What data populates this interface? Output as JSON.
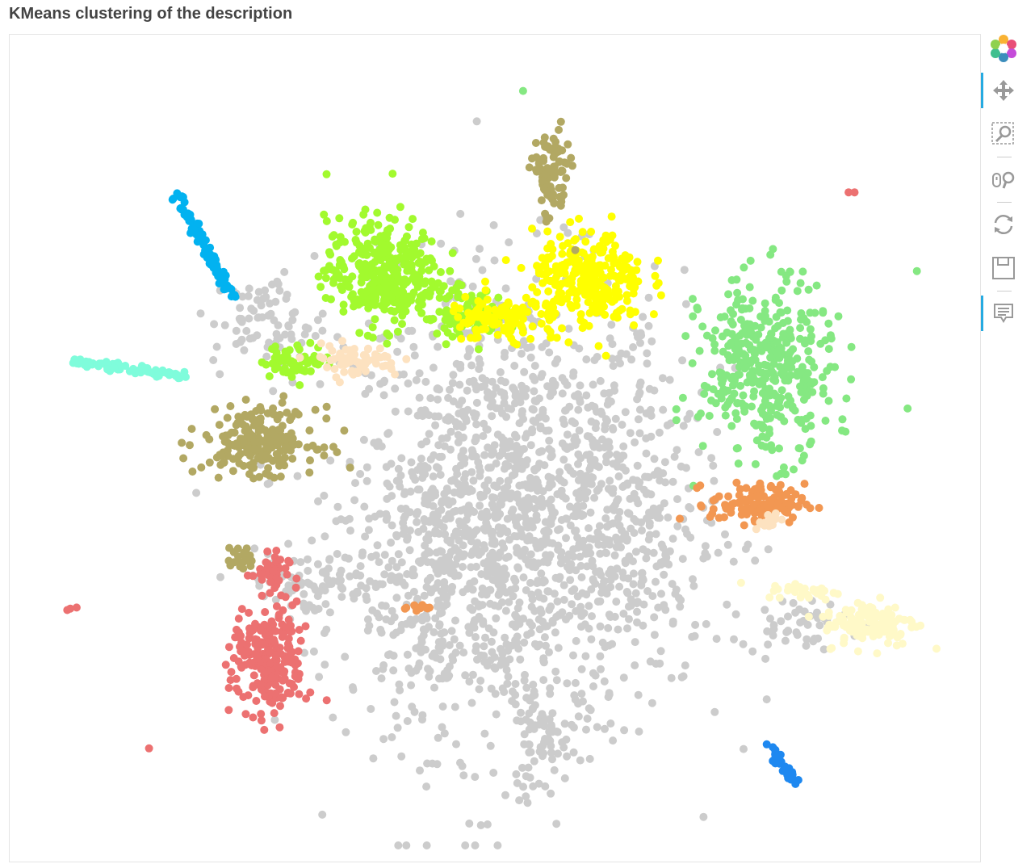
{
  "header": {
    "title": "KMeans clustering of the description"
  },
  "toolbar": {
    "tools": [
      {
        "name": "bokeh-logo",
        "active": false
      },
      {
        "name": "pan",
        "active": true
      },
      {
        "name": "box-zoom",
        "active": false
      },
      {
        "name": "wheel-zoom",
        "active": false
      },
      {
        "name": "reset",
        "active": false
      },
      {
        "name": "save",
        "active": false
      },
      {
        "name": "hover",
        "active": true
      }
    ]
  },
  "colors": {
    "unassigned": "#cccccc",
    "lime": "#a2fa2e",
    "yellow": "#ffff00",
    "olive": "#b2a863",
    "lightgreen": "#85e882",
    "skyblue": "#02b2f0",
    "aqua": "#7ffcdb",
    "red": "#ec7171",
    "orange": "#f29752",
    "cream": "#fff9c8",
    "blue": "#1e88f0",
    "bisque": "#fde2c0"
  },
  "chart_data": {
    "type": "scatter",
    "title": "KMeans clustering of the description",
    "xlabel": "",
    "ylabel": "",
    "xlim": [
      0,
      100
    ],
    "ylim": [
      0,
      100
    ],
    "grid": false,
    "legend": "none",
    "clusters": [
      {
        "color": "#cccccc",
        "blobs": [
          {
            "center": [
              52,
              42
            ],
            "size": [
              18,
              30
            ],
            "n": 1200
          },
          {
            "center": [
              44,
              35
            ],
            "size": [
              10,
              18
            ],
            "n": 300
          },
          {
            "center": [
              62,
              40
            ],
            "size": [
              12,
              20
            ],
            "n": 300
          },
          {
            "center": [
              55,
              14
            ],
            "size": [
              3,
              8
            ],
            "n": 60
          },
          {
            "center": [
              30,
              33
            ],
            "size": [
              8,
              4
            ],
            "n": 80
          },
          {
            "center": [
              82,
              28
            ],
            "size": [
              6,
              3
            ],
            "n": 50
          },
          {
            "center": [
              26,
              66
            ],
            "size": [
              6,
              6
            ],
            "n": 80
          }
        ]
      },
      {
        "color": "#a2fa2e",
        "blobs": [
          {
            "center": [
              38,
              72
            ],
            "size": [
              6,
              7
            ],
            "n": 350
          },
          {
            "center": [
              29,
              61
            ],
            "size": [
              4,
              2
            ],
            "n": 60
          },
          {
            "center": [
              47,
              67
            ],
            "size": [
              4,
              3
            ],
            "n": 80
          }
        ]
      },
      {
        "color": "#ffff00",
        "blobs": [
          {
            "center": [
              60,
              71
            ],
            "size": [
              6,
              6
            ],
            "n": 300
          },
          {
            "center": [
              50,
              66
            ],
            "size": [
              5,
              3
            ],
            "n": 100
          }
        ]
      },
      {
        "color": "#b2a863",
        "blobs": [
          {
            "center": [
              25,
              51
            ],
            "size": [
              6,
              4
            ],
            "n": 220
          },
          {
            "center": [
              56,
              84
            ],
            "size": [
              2,
              6
            ],
            "n": 90
          },
          {
            "center": [
              23,
              36
            ],
            "size": [
              1.5,
              1.5
            ],
            "n": 20
          }
        ]
      },
      {
        "color": "#85e882",
        "blobs": [
          {
            "center": [
              79,
              60
            ],
            "size": [
              7,
              11
            ],
            "n": 400
          },
          {
            "center": [
              53,
              95
            ],
            "size": [
              0.3,
              0.3
            ],
            "n": 1
          },
          {
            "center": [
              95,
              72
            ],
            "size": [
              0.3,
              0.3
            ],
            "n": 1
          }
        ]
      },
      {
        "color": "#02b2f0",
        "line": [
          [
            16,
            82
          ],
          [
            22,
            69
          ]
        ],
        "n": 80
      },
      {
        "color": "#7ffcdb",
        "line": [
          [
            5,
            61
          ],
          [
            17,
            59
          ]
        ],
        "n": 70
      },
      {
        "color": "#ec7171",
        "blobs": [
          {
            "center": [
              26,
              23
            ],
            "size": [
              4,
              7
            ],
            "n": 220
          },
          {
            "center": [
              26,
              34
            ],
            "size": [
              2,
              3
            ],
            "n": 40
          },
          {
            "center": [
              5,
              30
            ],
            "size": [
              0.8,
              0.4
            ],
            "n": 3
          },
          {
            "center": [
              13,
              12
            ],
            "size": [
              0.2,
              0.2
            ],
            "n": 1
          },
          {
            "center": [
              88,
              82
            ],
            "size": [
              0.5,
              0.3
            ],
            "n": 2
          }
        ]
      },
      {
        "color": "#f29752",
        "blobs": [
          {
            "center": [
              78,
              43
            ],
            "size": [
              5,
              2.5
            ],
            "n": 120
          },
          {
            "center": [
              42,
              30
            ],
            "size": [
              2,
              0.4
            ],
            "n": 10
          }
        ]
      },
      {
        "color": "#fff9c8",
        "blobs": [
          {
            "center": [
              90,
              28
            ],
            "size": [
              5,
              3
            ],
            "n": 130
          },
          {
            "center": [
              83,
              32
            ],
            "size": [
              4,
              1
            ],
            "n": 30
          }
        ]
      },
      {
        "color": "#1e88f0",
        "line": [
          [
            79,
            13
          ],
          [
            82,
            8
          ]
        ],
        "n": 40
      },
      {
        "color": "#fde2c0",
        "blobs": [
          {
            "center": [
              35,
              61
            ],
            "size": [
              5,
              2
            ],
            "n": 70
          },
          {
            "center": [
              79,
              41
            ],
            "size": [
              1.5,
              1
            ],
            "n": 15
          }
        ]
      }
    ]
  }
}
